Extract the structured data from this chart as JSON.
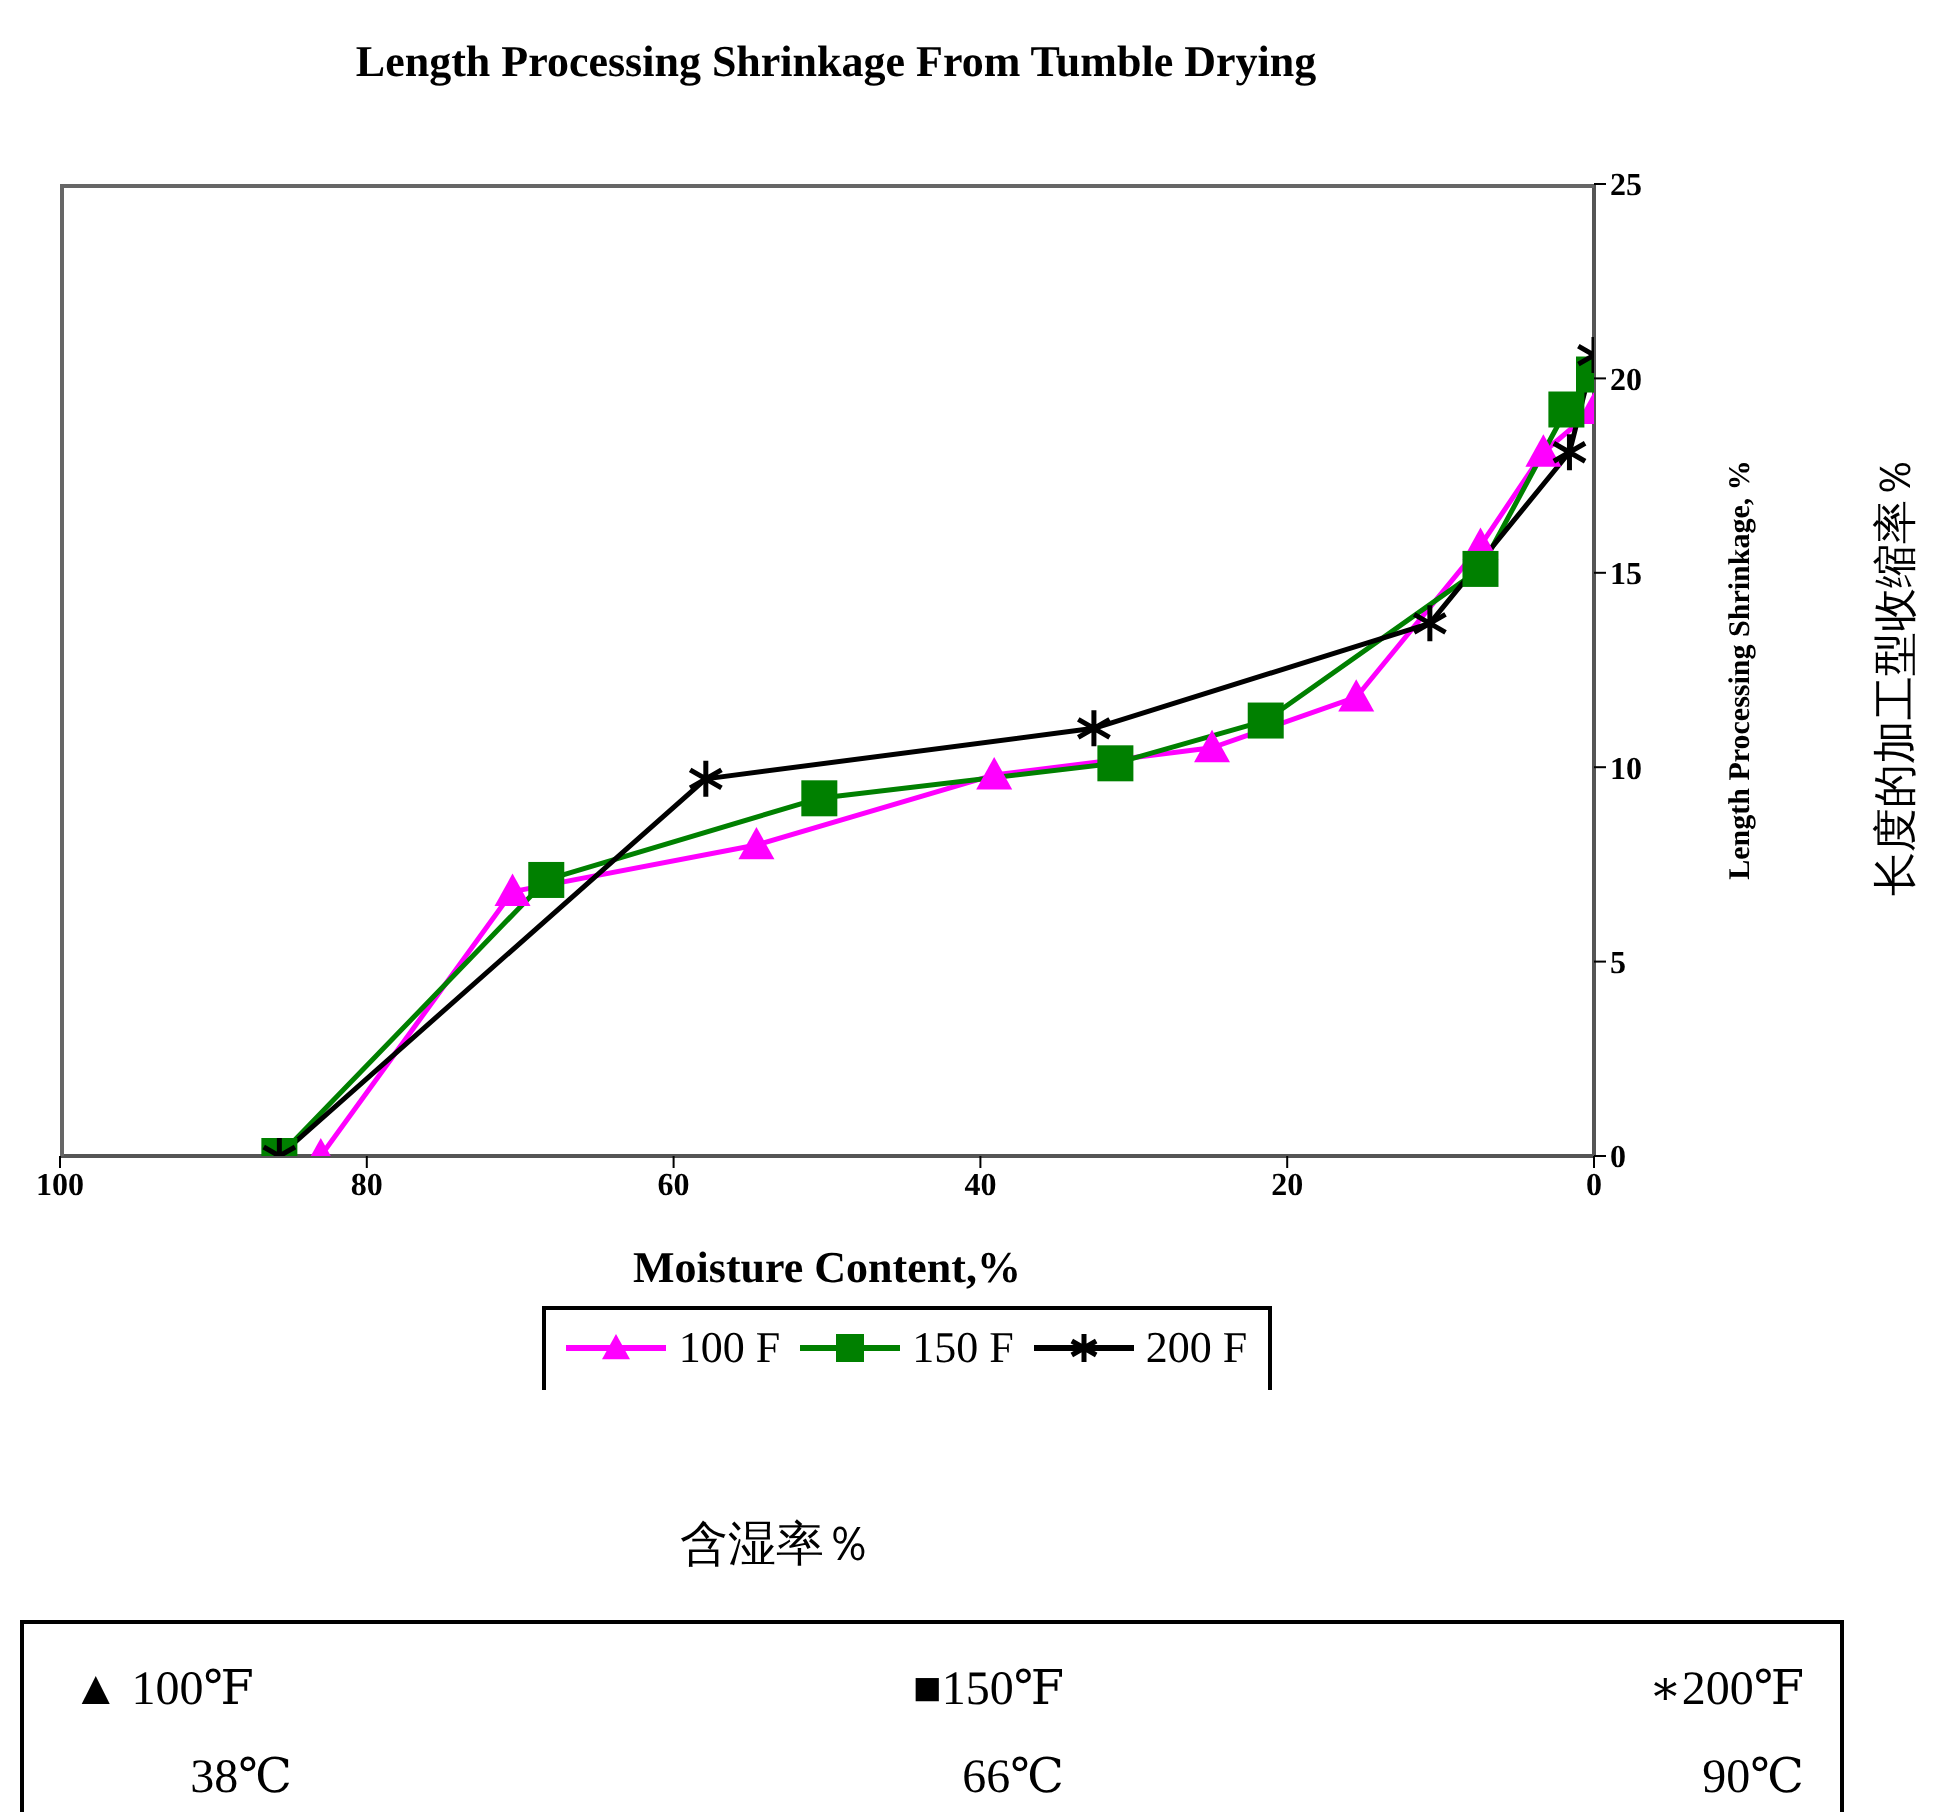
{
  "chart_data": {
    "type": "line",
    "title": "Length Processing Shrinkage From Tumble Drying",
    "xlabel": "Moisture Content,%",
    "ylabel": "Length Processing Shrinkage, %",
    "xlim": [
      100,
      0
    ],
    "xticks": [
      100,
      80,
      60,
      40,
      20,
      0
    ],
    "ylim": [
      0,
      25
    ],
    "yticks": [
      0,
      5,
      10,
      15,
      20,
      25
    ],
    "legend": "bottom",
    "series": [
      {
        "name": "100 F",
        "color": "#ff00ff",
        "marker": "triangle",
        "x": [
          83.0,
          70.5,
          54.6,
          39.1,
          24.9,
          15.5,
          7.4,
          3.3,
          0
        ],
        "values": [
          0,
          6.8,
          8.0,
          9.8,
          10.5,
          11.8,
          15.7,
          18.1,
          19.2
        ]
      },
      {
        "name": "150 F",
        "color": "#008000",
        "marker": "square",
        "x": [
          85.7,
          68.3,
          50.5,
          31.2,
          21.4,
          7.4,
          1.8,
          0
        ],
        "values": [
          0,
          7.1,
          9.2,
          10.1,
          11.2,
          15.1,
          19.2,
          20.1
        ]
      },
      {
        "name": "200 F",
        "color": "#000000",
        "marker": "cross",
        "x": [
          85.7,
          57.9,
          32.6,
          10.7,
          1.6,
          0
        ],
        "values": [
          0,
          9.7,
          11.0,
          13.7,
          18.1,
          20.6
        ]
      }
    ],
    "annotations": [
      "含湿率％",
      "长度的加工型收缩率％",
      "▲ 100℉",
      "■150℉",
      "∗200℉",
      "38℃",
      "66℃",
      "90℃"
    ]
  }
}
